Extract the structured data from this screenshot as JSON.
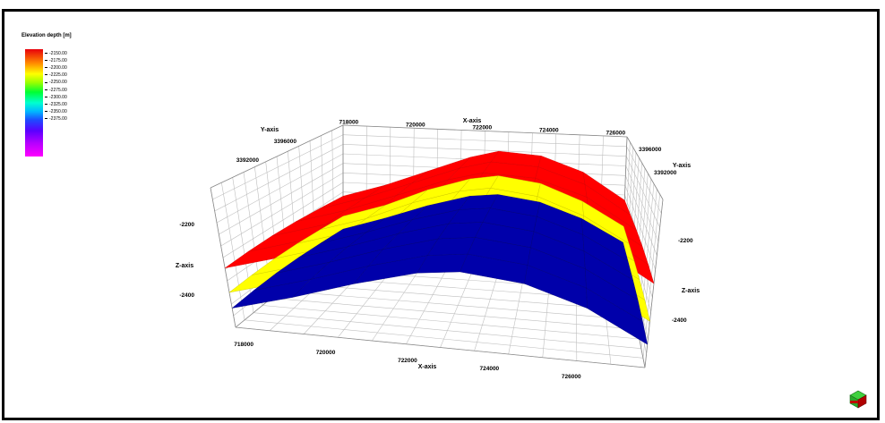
{
  "legend": {
    "title": "Elevation depth [m]",
    "ticks": [
      "-2150.00",
      "-2175.00",
      "-2200.00",
      "-2225.00",
      "-2250.00",
      "-2275.00",
      "-2300.00",
      "-2325.00",
      "-2350.00",
      "-2375.00"
    ]
  },
  "axes": {
    "x_title_top": "X-axis",
    "x_title_bottom": "X-axis",
    "y_title_left": "Y-axis",
    "y_title_right": "Y-axis",
    "z_title_left": "Z-axis",
    "z_title_right": "Z-axis",
    "x_ticks_top": [
      "718000",
      "720000",
      "722000",
      "724000",
      "726000"
    ],
    "x_ticks_bottom": [
      "718000",
      "720000",
      "722000",
      "724000",
      "726000"
    ],
    "y_ticks_left": [
      "3396000",
      "3392000"
    ],
    "y_ticks_right": [
      "3396000",
      "3392000"
    ],
    "z_ticks_left": [
      "-2200",
      "-2400"
    ],
    "z_ticks_right": [
      "-2200",
      "-2400"
    ]
  },
  "chart_data": {
    "type": "surface",
    "title": "",
    "xlabel": "X-axis",
    "ylabel": "Y-axis",
    "zlabel": "Z-axis",
    "grid": true,
    "legend_placement": "top-left",
    "colorbar": {
      "min": -2375,
      "max": -2150
    },
    "series": [
      {
        "color": "#ff0000",
        "z_profile_along_x": [
          -2330,
          -2285,
          -2230,
          -2175,
          -2150,
          -2160,
          -2210,
          -2300
        ]
      },
      {
        "color": "#ffff00",
        "z_profile_along_x": [
          -2400,
          -2355,
          -2295,
          -2250,
          -2235,
          -2255,
          -2310,
          -2390
        ]
      },
      {
        "color": "#0000aa",
        "z_profile_along_x": [
          -2445,
          -2400,
          -2350,
          -2310,
          -2300,
          -2320,
          -2370,
          -2445
        ]
      }
    ],
    "x_axis_samples": [
      717500,
      719000,
      720500,
      722000,
      723000,
      724500,
      726000,
      727500
    ]
  }
}
